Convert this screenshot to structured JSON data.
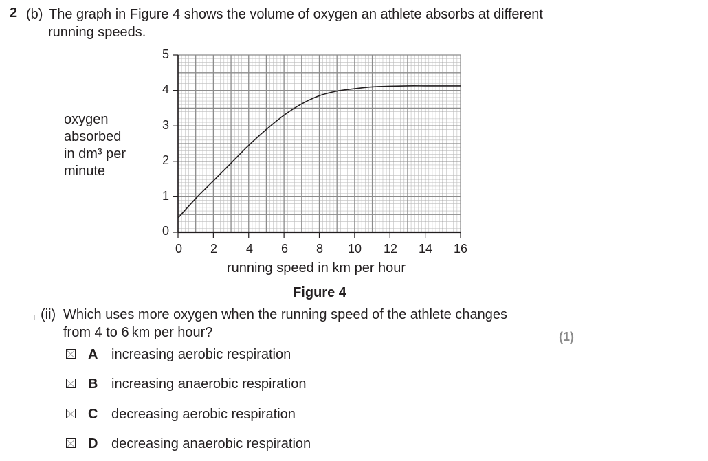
{
  "question": {
    "number": "2",
    "part": "(b)",
    "stem_line1": "The graph in Figure 4 shows the volume of oxygen an athlete absorbs at different",
    "stem_line2": "running speeds."
  },
  "chart_data": {
    "type": "line",
    "title": "",
    "xlabel": "running speed in km per hour",
    "ylabel_lines": [
      "oxygen",
      "absorbed",
      "in dm³ per",
      "minute"
    ],
    "xlim": [
      0,
      16
    ],
    "ylim": [
      0,
      5
    ],
    "xticks": [
      "0",
      "2",
      "4",
      "6",
      "8",
      "10",
      "12",
      "14",
      "16"
    ],
    "yticks": [
      "0",
      "1",
      "2",
      "3",
      "4",
      "5"
    ],
    "grid": true,
    "series": [
      {
        "x": [
          0,
          1,
          2,
          3,
          4,
          5,
          6,
          7,
          8,
          9,
          10,
          11,
          12,
          13,
          14,
          15,
          16
        ],
        "y": [
          0.4,
          0.95,
          1.45,
          1.95,
          2.45,
          2.9,
          3.3,
          3.62,
          3.85,
          3.98,
          4.05,
          4.1,
          4.12,
          4.13,
          4.13,
          4.13,
          4.13
        ]
      }
    ]
  },
  "figure_caption": "Figure 4",
  "subquestion": {
    "label": "(ii)",
    "line1": "Which uses more oxygen when the running speed of the athlete changes",
    "line2": "from 4 to 6 km per hour?",
    "marks": "(1)",
    "options": [
      {
        "letter": "A",
        "text": "increasing aerobic respiration"
      },
      {
        "letter": "B",
        "text": "increasing anaerobic respiration"
      },
      {
        "letter": "C",
        "text": "decreasing aerobic respiration"
      },
      {
        "letter": "D",
        "text": "decreasing anaerobic respiration"
      }
    ]
  }
}
